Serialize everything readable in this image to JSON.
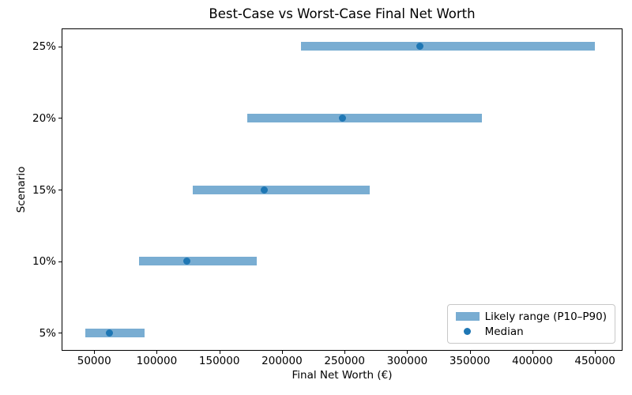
{
  "colors": {
    "bar": "#79ADD2",
    "median_dot": "#1F77B4",
    "spine": "#000000",
    "legend_border": "#C8C8C8"
  },
  "chart_data": {
    "type": "bar",
    "subtype": "horizontal_range_bar_with_median_dot",
    "title": "Best-Case vs Worst-Case Final Net Worth",
    "xlabel": "Final Net Worth (€)",
    "ylabel": "Scenario",
    "categories": [
      "5%",
      "10%",
      "15%",
      "20%",
      "25%"
    ],
    "series": [
      {
        "name": "P10",
        "values": [
          43000,
          86000,
          129000,
          172000,
          215000
        ]
      },
      {
        "name": "Median",
        "values": [
          62000,
          124000,
          186000,
          248000,
          310000
        ]
      },
      {
        "name": "P90",
        "values": [
          90000,
          180000,
          270000,
          360000,
          450000
        ]
      }
    ],
    "x_ticks": [
      50000,
      100000,
      150000,
      200000,
      250000,
      300000,
      350000,
      400000,
      450000
    ],
    "xlim": [
      24000,
      472000
    ],
    "grid": false,
    "legend_position": "lower right",
    "legend": {
      "range_label": "Likely range (P10–P90)",
      "median_label": "Median"
    }
  }
}
